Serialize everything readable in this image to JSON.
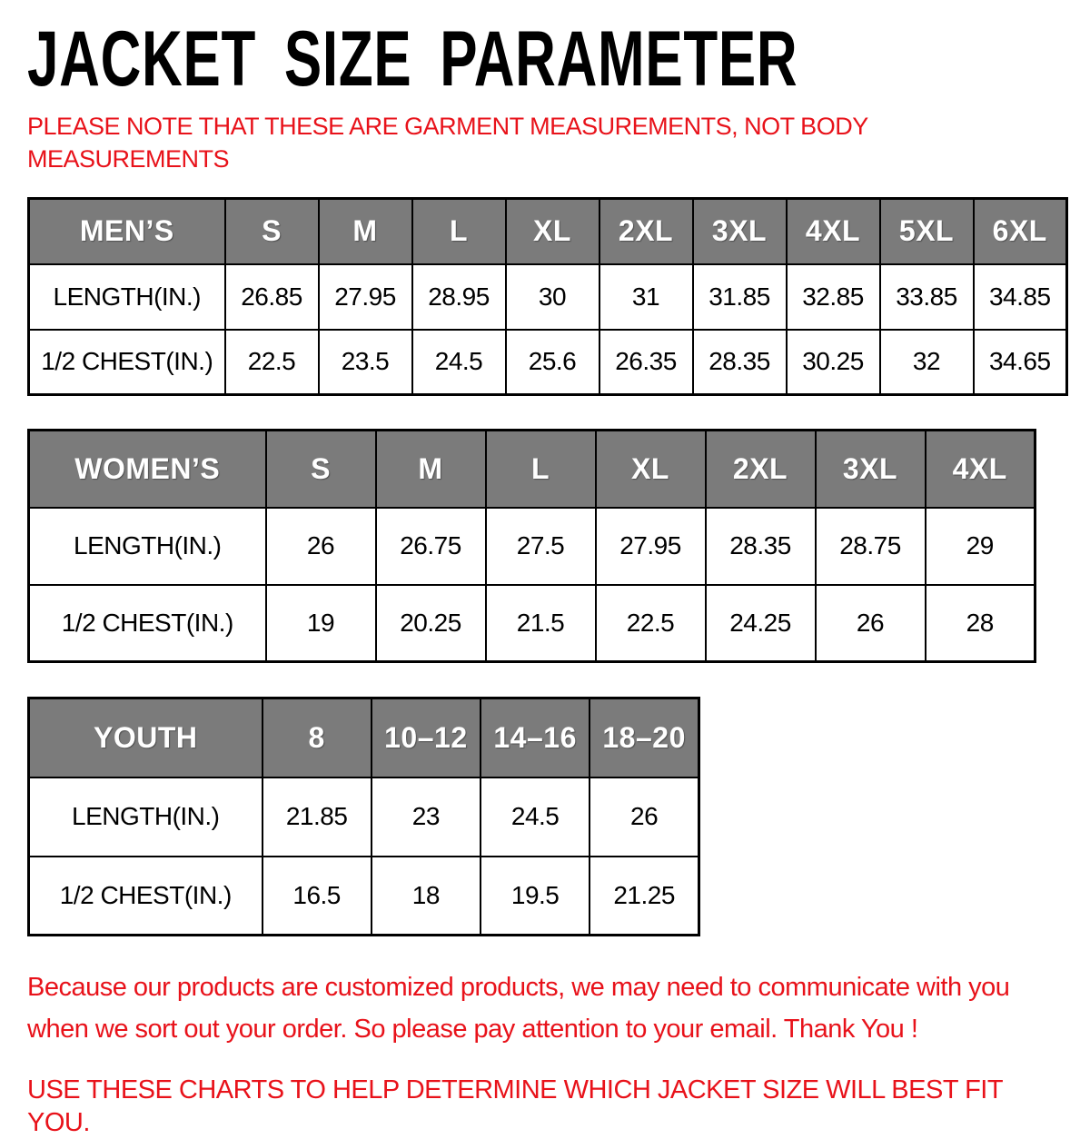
{
  "page": {
    "title": "JACKET SIZE PARAMETER",
    "garment_note": "PLEASE NOTE THAT THESE ARE GARMENT MEASUREMENTS, NOT BODY MEASUREMENTS",
    "footer_note": "Because our products are customized products, we may need to communicate with you when we sort out your order. So please pay attention to your email. Thank You !",
    "usage_note": "USE THESE CHARTS TO HELP DETERMINE WHICH JACKET SIZE WILL BEST FIT YOU."
  },
  "colors": {
    "accent_red": "#e8121a",
    "table_header_gray": "#7b7b7b",
    "border_black": "#000000",
    "header_text_white": "#ffffff"
  },
  "chart_data": [
    {
      "type": "table",
      "title": "MEN’S",
      "columns": [
        "S",
        "M",
        "L",
        "XL",
        "2XL",
        "3XL",
        "4XL",
        "5XL",
        "6XL"
      ],
      "rows": [
        {
          "label": "LENGTH(IN.)",
          "values": [
            "26.85",
            "27.95",
            "28.95",
            "30",
            "31",
            "31.85",
            "32.85",
            "33.85",
            "34.85"
          ]
        },
        {
          "label": "1/2 CHEST(IN.)",
          "values": [
            "22.5",
            "23.5",
            "24.5",
            "25.6",
            "26.35",
            "28.35",
            "30.25",
            "32",
            "34.65"
          ]
        }
      ]
    },
    {
      "type": "table",
      "title": "WOMEN’S",
      "columns": [
        "S",
        "M",
        "L",
        "XL",
        "2XL",
        "3XL",
        "4XL"
      ],
      "rows": [
        {
          "label": "LENGTH(IN.)",
          "values": [
            "26",
            "26.75",
            "27.5",
            "27.95",
            "28.35",
            "28.75",
            "29"
          ]
        },
        {
          "label": "1/2 CHEST(IN.)",
          "values": [
            "19",
            "20.25",
            "21.5",
            "22.5",
            "24.25",
            "26",
            "28"
          ]
        }
      ]
    },
    {
      "type": "table",
      "title": "YOUTH",
      "columns": [
        "8",
        "10–12",
        "14–16",
        "18–20"
      ],
      "rows": [
        {
          "label": "LENGTH(IN.)",
          "values": [
            "21.85",
            "23",
            "24.5",
            "26"
          ]
        },
        {
          "label": "1/2 CHEST(IN.)",
          "values": [
            "16.5",
            "18",
            "19.5",
            "21.25"
          ]
        }
      ]
    }
  ]
}
